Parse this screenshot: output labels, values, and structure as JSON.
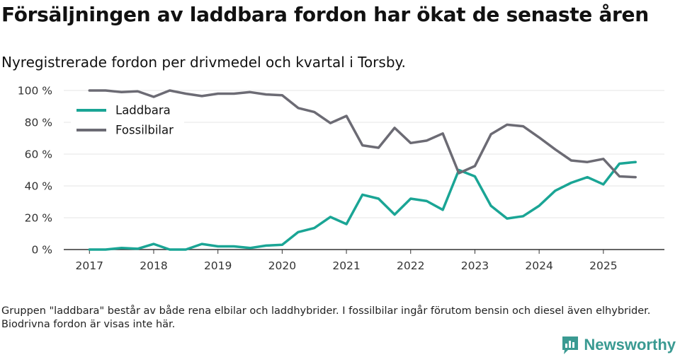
{
  "title": "Försäljningen av laddbara fordon har ökat de senaste åren",
  "subtitle": "Nyregistrerade fordon per drivmedel och kvartal i Torsby.",
  "note": "Gruppen \"laddbara\" består av både rena elbilar och laddhybrider. I fossilbilar ingår förutom bensin och diesel även elhybrider. Biodrivna fordon är visas inte här.",
  "brand": {
    "name": "Newsworthy",
    "icon": "newsworthy-logo-icon"
  },
  "colors": {
    "laddbara": "#1aa595",
    "fossil": "#6c6b74",
    "grid": "#e4e4e4",
    "axis": "#333333"
  },
  "chart_data": {
    "type": "line",
    "ylabel": "",
    "xlabel": "",
    "ylim": [
      0,
      100
    ],
    "yticks": [
      0,
      20,
      40,
      60,
      80,
      100
    ],
    "ytick_labels": [
      "0 %",
      "20 %",
      "40 %",
      "60 %",
      "80 %",
      "100 %"
    ],
    "xticks": [
      2017,
      2018,
      2019,
      2020,
      2021,
      2022,
      2023,
      2024,
      2025
    ],
    "xtick_labels": [
      "2017",
      "2018",
      "2019",
      "2020",
      "2021",
      "2022",
      "2023",
      "2024",
      "2025"
    ],
    "xlim": [
      2016.6,
      2025.95
    ],
    "legend_position": "top-left",
    "x": [
      2017.0,
      2017.25,
      2017.5,
      2017.75,
      2018.0,
      2018.25,
      2018.5,
      2018.75,
      2019.0,
      2019.25,
      2019.5,
      2019.75,
      2020.0,
      2020.25,
      2020.5,
      2020.75,
      2021.0,
      2021.25,
      2021.5,
      2021.75,
      2022.0,
      2022.25,
      2022.5,
      2022.75,
      2023.0,
      2023.25,
      2023.5,
      2023.75,
      2024.0,
      2024.25,
      2024.5,
      2024.75,
      2025.0,
      2025.25,
      2025.5
    ],
    "series": [
      {
        "name": "Laddbara",
        "values": [
          0,
          0,
          1,
          0.5,
          3.5,
          0,
          0,
          3.5,
          2,
          2,
          1,
          2.5,
          3,
          11,
          13.5,
          20.5,
          16,
          34.5,
          32,
          22,
          32,
          30.5,
          25,
          50,
          46,
          27.5,
          19.5,
          21,
          27.5,
          37,
          42,
          45.5,
          41,
          54,
          55
        ]
      },
      {
        "name": "Fossilbilar",
        "values": [
          100,
          100,
          99,
          99.5,
          96,
          100,
          98,
          96.5,
          98,
          98,
          99,
          97.5,
          97,
          89,
          86.5,
          79.5,
          84,
          65.5,
          64,
          76.5,
          67,
          68.5,
          73,
          48,
          52.5,
          72.5,
          78.5,
          77.5,
          70.5,
          63,
          56,
          55,
          57,
          46,
          45.5
        ]
      }
    ]
  }
}
